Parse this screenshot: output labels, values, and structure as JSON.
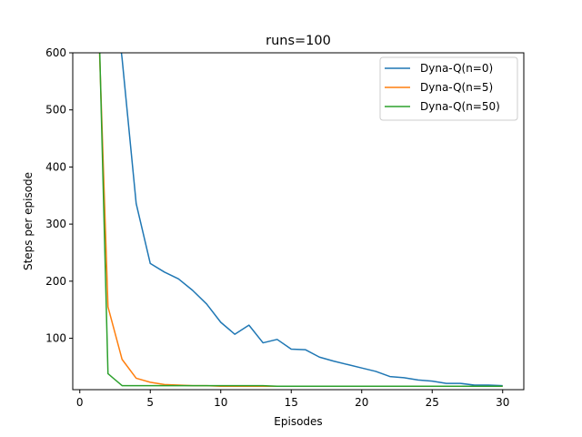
{
  "chart_data": {
    "type": "line",
    "title": "runs=100",
    "xlabel": "Episodes",
    "ylabel": "Steps per episode",
    "xlim": [
      -0.5,
      31.5
    ],
    "ylim": [
      10,
      600
    ],
    "xticks": [
      0,
      5,
      10,
      15,
      20,
      25,
      30
    ],
    "yticks": [
      100,
      200,
      300,
      400,
      500,
      600
    ],
    "grid": false,
    "legend_position": "top-right",
    "series": [
      {
        "name": "Dyna-Q(n=0)",
        "color": "#1f77b4",
        "x": [
          2,
          3,
          4,
          5,
          6,
          7,
          8,
          9,
          10,
          11,
          12,
          13,
          14,
          15,
          16,
          17,
          18,
          19,
          20,
          21,
          22,
          23,
          24,
          25,
          26,
          27,
          28,
          29,
          30
        ],
        "y": [
          800,
          590,
          336,
          231,
          216,
          204,
          184,
          160,
          128,
          107,
          123,
          92,
          98,
          81,
          80,
          67,
          60,
          54,
          48,
          42,
          33,
          31,
          27,
          25,
          21,
          21,
          18,
          18,
          17
        ]
      },
      {
        "name": "Dyna-Q(n=5)",
        "color": "#ff7f0e",
        "x": [
          1,
          2,
          3,
          4,
          5,
          6,
          7,
          8,
          9,
          10,
          11,
          12,
          13,
          14,
          15,
          16,
          17,
          18,
          19,
          20,
          21,
          22,
          23,
          24,
          25,
          26,
          27,
          28,
          29,
          30
        ],
        "y": [
          900,
          155,
          63,
          30,
          23,
          19,
          18,
          17,
          17,
          16,
          16,
          16,
          16,
          16,
          16,
          16,
          16,
          16,
          16,
          16,
          16,
          16,
          16,
          16,
          16,
          16,
          16,
          16,
          16,
          16
        ]
      },
      {
        "name": "Dyna-Q(n=50)",
        "color": "#2ca02c",
        "x": [
          1,
          2,
          3,
          4,
          5,
          6,
          7,
          8,
          9,
          10,
          11,
          12,
          13,
          14,
          15,
          16,
          17,
          18,
          19,
          20,
          21,
          22,
          23,
          24,
          25,
          26,
          27,
          28,
          29,
          30
        ],
        "y": [
          1000,
          38,
          17,
          17,
          17,
          17,
          17,
          17,
          17,
          17,
          17,
          17,
          17,
          16,
          16,
          16,
          16,
          16,
          16,
          16,
          16,
          16,
          16,
          16,
          16,
          16,
          16,
          16,
          16,
          16
        ]
      }
    ]
  }
}
